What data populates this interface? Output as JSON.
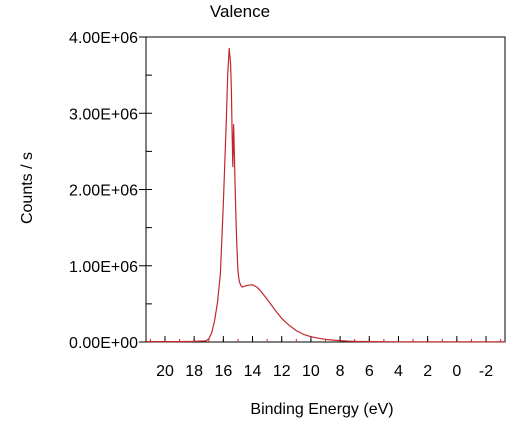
{
  "chart_data": {
    "type": "line",
    "title": "Valence",
    "xlabel": "Binding Energy  (eV)",
    "ylabel": "Counts / s",
    "x_reversed": true,
    "xlim": [
      21.3,
      -3.3
    ],
    "ylim": [
      0,
      4000000
    ],
    "x_ticks": [
      20,
      18,
      16,
      14,
      12,
      10,
      8,
      6,
      4,
      2,
      0,
      -2
    ],
    "y_ticks": [
      {
        "value": 0,
        "label": "0.00E+00"
      },
      {
        "value": 1000000,
        "label": "1.00E+06"
      },
      {
        "value": 2000000,
        "label": "2.00E+06"
      },
      {
        "value": 3000000,
        "label": "3.00E+06"
      },
      {
        "value": 4000000,
        "label": "4.00E+06"
      }
    ],
    "y_minor_step": 500000,
    "x_minor_step": 1,
    "grid": false,
    "series_color": "#c0272d",
    "series": [
      {
        "name": "",
        "x": [
          21.3,
          20,
          19,
          18,
          17.2,
          17,
          16.8,
          16.6,
          16.4,
          16.2,
          16,
          15.8,
          15.7,
          15.6,
          15.5,
          15.45,
          15.4,
          15.35,
          15.3,
          15.25,
          15.2,
          15.15,
          15.1,
          15.05,
          15.0,
          14.95,
          14.9,
          14.8,
          14.7,
          14.5,
          14.3,
          14.0,
          13.7,
          13.4,
          13.0,
          12.5,
          12.0,
          11.5,
          11.0,
          10.5,
          10.0,
          9.5,
          9.0,
          8.5,
          8.0,
          7.5,
          7.0,
          6.5,
          6.0,
          5.0,
          4.0,
          2.0,
          0.0,
          -2.0,
          -3.3
        ],
        "y": [
          5000,
          5000,
          5000,
          8000,
          15000,
          40000,
          120000,
          280000,
          520000,
          900000,
          1800000,
          2900000,
          3500000,
          3850000,
          3650000,
          3300000,
          2750000,
          2300000,
          2850000,
          2500000,
          2100000,
          1700000,
          1400000,
          1150000,
          950000,
          850000,
          790000,
          740000,
          720000,
          735000,
          745000,
          750000,
          720000,
          660000,
          560000,
          430000,
          310000,
          220000,
          150000,
          100000,
          70000,
          50000,
          35000,
          25000,
          18000,
          12000,
          8000,
          6000,
          5000,
          4000,
          3000,
          2000,
          2000,
          2000,
          2000
        ]
      }
    ]
  }
}
